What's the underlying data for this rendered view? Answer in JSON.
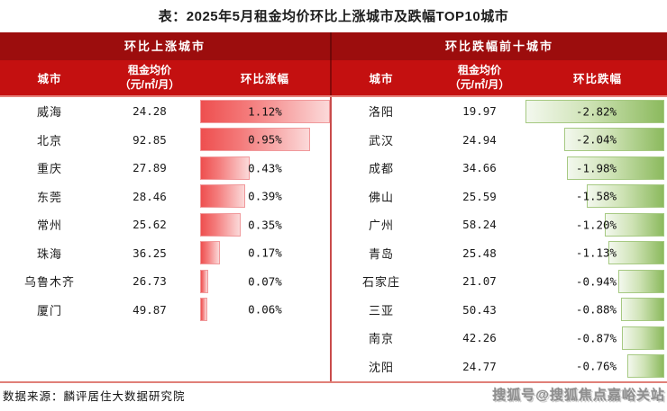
{
  "title": "表：2025年5月租金均价环比上涨城市及跌幅TOP10城市",
  "footer": {
    "source": "数据来源：麟评居住大数据研究院",
    "watermark": "搜狐号@搜狐焦点嘉峪关站"
  },
  "colors": {
    "group_header_bg": "#9c0d0d",
    "column_header_bg": "#c41010",
    "bar_up_red": "#ee4f4f",
    "bar_up_light": "#fbd9d9",
    "bar_down_green": "#8cba5e",
    "bar_down_light": "#f3f8ee",
    "divider_red": "#c94b4b",
    "rule_salmon": "#e5837c",
    "header_text": "#ffffff",
    "body_text": "#1b1b1b",
    "watermark_gray": "#8f8f8f"
  },
  "left_table": {
    "group_header": "环比上涨城市",
    "columns": {
      "city": "城市",
      "price_line1": "租金均价",
      "price_line2": "（元/㎡/月）",
      "change": "环比涨幅"
    },
    "rows": [
      {
        "city": "威海",
        "price": "24.28",
        "change": "1.12%",
        "value": 1.12
      },
      {
        "city": "北京",
        "price": "92.85",
        "change": "0.95%",
        "value": 0.95
      },
      {
        "city": "重庆",
        "price": "27.89",
        "change": "0.43%",
        "value": 0.43
      },
      {
        "city": "东莞",
        "price": "28.46",
        "change": "0.39%",
        "value": 0.39
      },
      {
        "city": "常州",
        "price": "25.62",
        "change": "0.35%",
        "value": 0.35
      },
      {
        "city": "珠海",
        "price": "36.25",
        "change": "0.17%",
        "value": 0.17
      },
      {
        "city": "乌鲁木齐",
        "price": "26.73",
        "change": "0.07%",
        "value": 0.07
      },
      {
        "city": "厦门",
        "price": "49.87",
        "change": "0.06%",
        "value": 0.06
      }
    ]
  },
  "right_table": {
    "group_header": "环比跌幅前十城市",
    "columns": {
      "city": "城市",
      "price_line1": "租金均价",
      "price_line2": "（元/㎡/月）",
      "change": "环比跌幅"
    },
    "rows": [
      {
        "city": "洛阳",
        "price": "19.97",
        "change": "-2.82%",
        "value": 2.82
      },
      {
        "city": "武汉",
        "price": "24.94",
        "change": "-2.04%",
        "value": 2.04
      },
      {
        "city": "成都",
        "price": "34.66",
        "change": "-1.98%",
        "value": 1.98
      },
      {
        "city": "佛山",
        "price": "25.59",
        "change": "-1.58%",
        "value": 1.58
      },
      {
        "city": "广州",
        "price": "58.24",
        "change": "-1.20%",
        "value": 1.2
      },
      {
        "city": "青岛",
        "price": "25.48",
        "change": "-1.13%",
        "value": 1.13
      },
      {
        "city": "石家庄",
        "price": "21.07",
        "change": "-0.94%",
        "value": 0.94
      },
      {
        "city": "三亚",
        "price": "50.43",
        "change": "-0.88%",
        "value": 0.88
      },
      {
        "city": "南京",
        "price": "42.26",
        "change": "-0.87%",
        "value": 0.87
      },
      {
        "city": "沈阳",
        "price": "24.77",
        "change": "-0.76%",
        "value": 0.76
      }
    ]
  },
  "chart_data": [
    {
      "type": "bar",
      "orientation": "horizontal",
      "title": "环比上涨城市",
      "categories": [
        "威海",
        "北京",
        "重庆",
        "东莞",
        "常州",
        "珠海",
        "乌鲁木齐",
        "厦门"
      ],
      "series": [
        {
          "name": "租金均价（元/㎡/月）",
          "values": [
            24.28,
            92.85,
            27.89,
            28.46,
            25.62,
            36.25,
            26.73,
            49.87
          ]
        },
        {
          "name": "环比涨幅(%)",
          "values": [
            1.12,
            0.95,
            0.43,
            0.39,
            0.35,
            0.17,
            0.07,
            0.06
          ]
        }
      ],
      "bar_axis_range": [
        0,
        1.12
      ],
      "grid": false,
      "legend": false
    },
    {
      "type": "bar",
      "orientation": "horizontal",
      "title": "环比跌幅前十城市",
      "categories": [
        "洛阳",
        "武汉",
        "成都",
        "佛山",
        "广州",
        "青岛",
        "石家庄",
        "三亚",
        "南京",
        "沈阳"
      ],
      "series": [
        {
          "name": "租金均价（元/㎡/月）",
          "values": [
            19.97,
            24.94,
            34.66,
            25.59,
            58.24,
            25.48,
            21.07,
            50.43,
            42.26,
            24.77
          ]
        },
        {
          "name": "环比跌幅(%)",
          "values": [
            -2.82,
            -2.04,
            -1.98,
            -1.58,
            -1.2,
            -1.13,
            -0.94,
            -0.88,
            -0.87,
            -0.76
          ]
        }
      ],
      "bar_axis_range": [
        -2.82,
        0
      ],
      "grid": false,
      "legend": false
    }
  ]
}
